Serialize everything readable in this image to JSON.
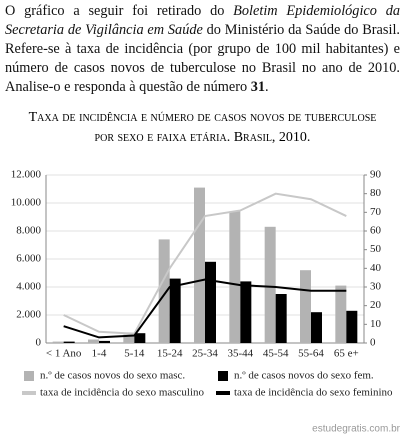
{
  "intro": [
    "O gráfico a seguir foi retirado do ",
    "Boletim Epidemiológico da Secretaria de Vigilância em Saúde",
    " do Ministério da Saúde do Brasil. Refere-se à taxa de incidência (por grupo de 100 mil habitantes) e número de casos novos de tuberculose no Brasil no ano de 2010. Analise-o e responda à questão de número ",
    "31",
    "."
  ],
  "watermark": "estudegratis.com.br",
  "chart_data": {
    "type": "bar-line",
    "title": "Taxa de incidência e número de casos novos de tuberculose por sexo e faixa etária. Brasil, 2010.",
    "categories": [
      "< 1 Ano",
      "1-4",
      "5-14",
      "15-24",
      "25-34",
      "35-44",
      "45-54",
      "55-64",
      "65 e+"
    ],
    "series": [
      {
        "name": "n.º de casos novos do sexo masc.",
        "type": "bar",
        "color": "#b3b3b3",
        "values": [
          100,
          250,
          600,
          7400,
          11100,
          9400,
          8300,
          5200,
          4100
        ]
      },
      {
        "name": "n.º de casos novos do sexo fem.",
        "type": "bar",
        "color": "#000000",
        "values": [
          100,
          150,
          700,
          4600,
          5800,
          4400,
          3500,
          2200,
          2300
        ]
      },
      {
        "name": "taxa de incidência do sexo masculino",
        "type": "line",
        "axis": "y2",
        "color": "#c8c8c8",
        "values": [
          15,
          6,
          5,
          40,
          68,
          71,
          80,
          77,
          68
        ]
      },
      {
        "name": "taxa de incidência do sexo feminino",
        "type": "line",
        "axis": "y2",
        "color": "#000000",
        "values": [
          9,
          3,
          4,
          30,
          34,
          31,
          30,
          28,
          28
        ]
      }
    ],
    "ylim": [
      0,
      12000
    ],
    "yticks": [
      0,
      {
        "value": 2000,
        "label": "2.000"
      },
      {
        "value": 4000,
        "label": "4.000"
      },
      {
        "value": 6000,
        "label": "6.000"
      },
      {
        "value": 8000,
        "label": "8.000"
      },
      {
        "value": 10000,
        "label": "10.000"
      },
      {
        "value": 12000,
        "label": "12.000"
      }
    ],
    "y2lim": [
      0,
      90
    ],
    "y2ticks": [
      0,
      10,
      20,
      30,
      40,
      50,
      60,
      70,
      80,
      90
    ],
    "grid": true
  }
}
